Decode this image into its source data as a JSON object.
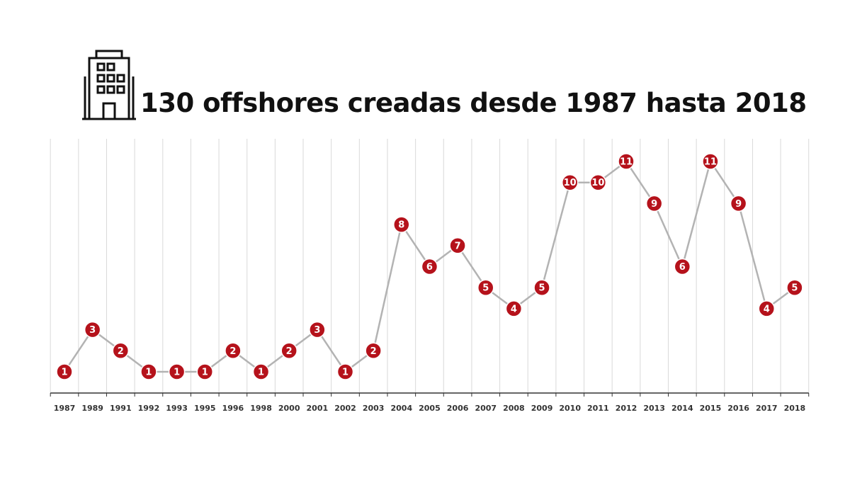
{
  "title": "130 offshores creadas desde 1987 hasta 2018",
  "icon": "building-icon",
  "colors": {
    "point": "#b5121b",
    "line": "#b3b3b3",
    "grid": "#d9d9d9",
    "axis": "#333333"
  },
  "chart_data": {
    "type": "line",
    "title": "130 offshores creadas desde 1987 hasta 2018",
    "xlabel": "",
    "ylabel": "",
    "categories": [
      "1987",
      "1989",
      "1991",
      "1992",
      "1993",
      "1995",
      "1996",
      "1998",
      "2000",
      "2001",
      "2002",
      "2003",
      "2004",
      "2005",
      "2006",
      "2007",
      "2008",
      "2009",
      "2010",
      "2011",
      "2012",
      "2013",
      "2014",
      "2015",
      "2016",
      "2017",
      "2018"
    ],
    "values": [
      1,
      3,
      2,
      1,
      1,
      1,
      2,
      1,
      2,
      3,
      1,
      2,
      8,
      6,
      7,
      5,
      4,
      5,
      10,
      10,
      11,
      9,
      6,
      11,
      9,
      4,
      5
    ],
    "ylim": [
      0,
      12
    ],
    "grid": "vertical",
    "data_labels": true
  }
}
